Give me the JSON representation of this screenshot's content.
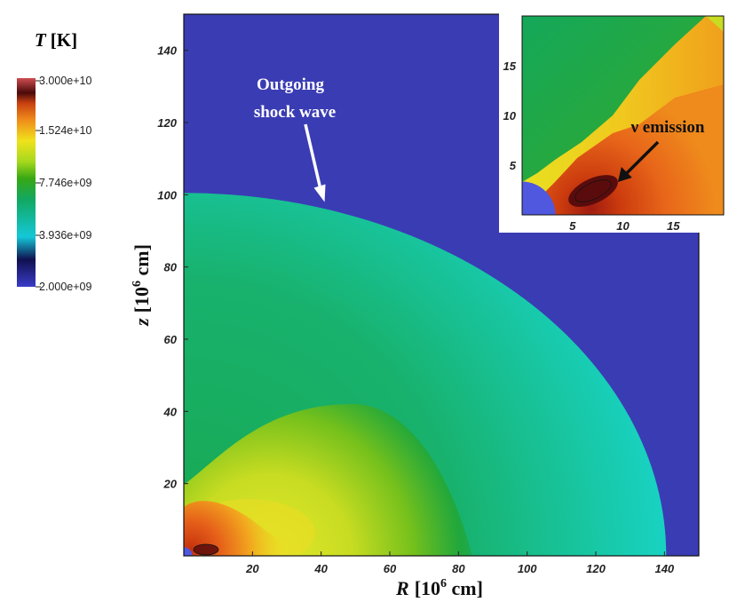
{
  "chart_data": {
    "type": "heatmap",
    "title": "",
    "colorbar": {
      "title_symbol": "T",
      "title_unit": "[K]",
      "min": 2000000000.0,
      "max": 30000000000.0,
      "tick_labels": [
        "3.000e+10",
        "1.524e+10",
        "7.746e+09",
        "3.936e+09",
        "2.000e+09"
      ],
      "colormap": [
        "#3a3cc8",
        "#101050",
        "#14c8d8",
        "#12a860",
        "#38a814",
        "#a6d81e",
        "#f0e21c",
        "#f08c1a",
        "#c84010",
        "#4a0a0a",
        "#cf4c50"
      ]
    },
    "main": {
      "xlabel_symbol": "R",
      "xlabel_unit": "[10",
      "xlabel_exp": "6",
      "xlabel_tail": " cm]",
      "ylabel_symbol": "z",
      "ylabel_unit": "[10",
      "ylabel_exp": "6",
      "ylabel_tail": " cm]",
      "xlim": [
        0,
        150
      ],
      "ylim": [
        0,
        150
      ],
      "x_ticks": [
        20,
        40,
        60,
        80,
        100,
        120,
        140
      ],
      "y_ticks": [
        20,
        40,
        60,
        80,
        100,
        120,
        140
      ],
      "shock_radius": 140,
      "shock_z_at_axis": 100.5,
      "shock_r_at_axis": 140.5,
      "core_radius": 2.5,
      "annotation": {
        "line1": "Outgoing",
        "line2": "shock wave",
        "target": [
          41,
          98
        ]
      }
    },
    "inset": {
      "xlim": [
        0,
        20
      ],
      "ylim": [
        0,
        20
      ],
      "x_ticks": [
        5,
        10,
        15
      ],
      "y_ticks": [
        5,
        10,
        15
      ],
      "core_radius": 2.2,
      "annotation": {
        "label": "ν emission",
        "target": [
          9.5,
          3.3
        ]
      }
    }
  },
  "colors": {
    "background_gas": "#3a3cb4",
    "shocked_outer": "#18d0c8",
    "shocked_inner": "#1aa560",
    "heated_yellow": "#d4e024",
    "hot_core": "#d8420e",
    "neutron_star": "#5058e0"
  }
}
